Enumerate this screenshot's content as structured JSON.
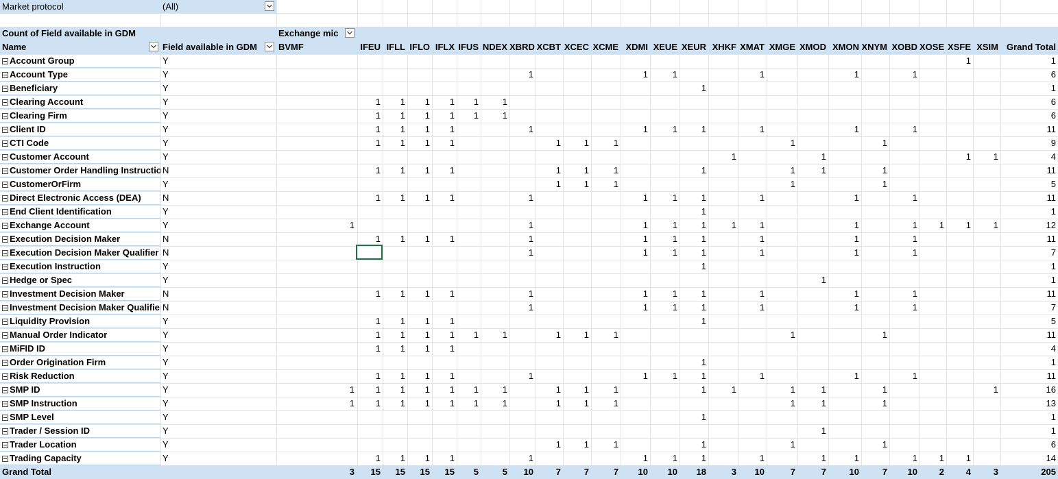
{
  "page_filter": {
    "label": "Market protocol",
    "value": "(All)"
  },
  "header": {
    "values_label": "Count of Field available in GDM",
    "col_field_label": "Exchange mic",
    "name_label": "Name",
    "field_label": "Field available in GDM",
    "grand_total_label": "Grand Total"
  },
  "columns": [
    "BVMF",
    "IFEU",
    "IFLL",
    "IFLO",
    "IFLX",
    "IFUS",
    "NDEX",
    "XBRD",
    "XCBT",
    "XCEC",
    "XCME",
    "XDMI",
    "XEUE",
    "XEUR",
    "XHKF",
    "XMAT",
    "XMGE",
    "XMOD",
    "XMON",
    "XNYM",
    "XOBD",
    "XOSE",
    "XSFE",
    "XSIM"
  ],
  "rows": [
    {
      "name": "Account Group",
      "field": "Y",
      "values": [
        "",
        "",
        "",
        "",
        "",
        "",
        "",
        "",
        "",
        "",
        "",
        "",
        "",
        "",
        "",
        "",
        "",
        "",
        "",
        "",
        "",
        "",
        "1",
        ""
      ],
      "total": "1"
    },
    {
      "name": "Account Type",
      "field": "Y",
      "values": [
        "",
        "",
        "",
        "",
        "",
        "",
        "",
        "1",
        "",
        "",
        "",
        "1",
        "1",
        "",
        "",
        "1",
        "",
        "",
        "1",
        "",
        "1",
        "",
        "",
        ""
      ],
      "total": "6"
    },
    {
      "name": "Beneficiary",
      "field": "Y",
      "values": [
        "",
        "",
        "",
        "",
        "",
        "",
        "",
        "",
        "",
        "",
        "",
        "",
        "",
        "1",
        "",
        "",
        "",
        "",
        "",
        "",
        "",
        "",
        "",
        ""
      ],
      "total": "1"
    },
    {
      "name": "Clearing Account",
      "field": "Y",
      "values": [
        "",
        "1",
        "1",
        "1",
        "1",
        "1",
        "1",
        "",
        "",
        "",
        "",
        "",
        "",
        "",
        "",
        "",
        "",
        "",
        "",
        "",
        "",
        "",
        "",
        ""
      ],
      "total": "6"
    },
    {
      "name": "Clearing Firm",
      "field": "Y",
      "values": [
        "",
        "1",
        "1",
        "1",
        "1",
        "1",
        "1",
        "",
        "",
        "",
        "",
        "",
        "",
        "",
        "",
        "",
        "",
        "",
        "",
        "",
        "",
        "",
        "",
        ""
      ],
      "total": "6"
    },
    {
      "name": "Client ID",
      "field": "Y",
      "values": [
        "",
        "1",
        "1",
        "1",
        "1",
        "",
        "",
        "1",
        "",
        "",
        "",
        "1",
        "1",
        "1",
        "",
        "1",
        "",
        "",
        "1",
        "",
        "1",
        "",
        "",
        ""
      ],
      "total": "11"
    },
    {
      "name": "CTI Code",
      "field": "Y",
      "values": [
        "",
        "1",
        "1",
        "1",
        "1",
        "",
        "",
        "",
        "1",
        "1",
        "1",
        "",
        "",
        "",
        "",
        "",
        "1",
        "",
        "",
        "1",
        "",
        "",
        "",
        ""
      ],
      "total": "9"
    },
    {
      "name": "Customer Account",
      "field": "Y",
      "values": [
        "",
        "",
        "",
        "",
        "",
        "",
        "",
        "",
        "",
        "",
        "",
        "",
        "",
        "",
        "1",
        "",
        "",
        "1",
        "",
        "",
        "",
        "",
        "1",
        "1"
      ],
      "total": "4"
    },
    {
      "name": "Customer Order Handling Instruction",
      "field": "N",
      "values": [
        "",
        "1",
        "1",
        "1",
        "1",
        "",
        "",
        "",
        "1",
        "1",
        "1",
        "",
        "",
        "1",
        "",
        "",
        "1",
        "1",
        "",
        "1",
        "",
        "",
        "",
        ""
      ],
      "total": "11"
    },
    {
      "name": "CustomerOrFirm",
      "field": "Y",
      "values": [
        "",
        "",
        "",
        "",
        "",
        "",
        "",
        "",
        "1",
        "1",
        "1",
        "",
        "",
        "",
        "",
        "",
        "1",
        "",
        "",
        "1",
        "",
        "",
        "",
        ""
      ],
      "total": "5"
    },
    {
      "name": "Direct Electronic Access (DEA)",
      "field": "N",
      "values": [
        "",
        "1",
        "1",
        "1",
        "1",
        "",
        "",
        "1",
        "",
        "",
        "",
        "1",
        "1",
        "1",
        "",
        "1",
        "",
        "",
        "1",
        "",
        "1",
        "",
        "",
        ""
      ],
      "total": "11"
    },
    {
      "name": "End Client Identification",
      "field": "Y",
      "values": [
        "",
        "",
        "",
        "",
        "",
        "",
        "",
        "",
        "",
        "",
        "",
        "",
        "",
        "1",
        "",
        "",
        "",
        "",
        "",
        "",
        "",
        "",
        "",
        ""
      ],
      "total": "1"
    },
    {
      "name": "Exchange Account",
      "field": "Y",
      "values": [
        "1",
        "",
        "",
        "",
        "",
        "",
        "",
        "1",
        "",
        "",
        "",
        "1",
        "1",
        "1",
        "1",
        "1",
        "",
        "",
        "1",
        "",
        "1",
        "1",
        "1",
        "1"
      ],
      "total": "12"
    },
    {
      "name": "Execution Decision Maker",
      "field": "N",
      "values": [
        "",
        "1",
        "1",
        "1",
        "1",
        "",
        "",
        "1",
        "",
        "",
        "",
        "1",
        "1",
        "1",
        "",
        "1",
        "",
        "",
        "1",
        "",
        "1",
        "",
        "",
        ""
      ],
      "total": "11"
    },
    {
      "name": "Execution Decision Maker Qualifier",
      "field": "N",
      "values": [
        "",
        "",
        "",
        "",
        "",
        "",
        "",
        "1",
        "",
        "",
        "",
        "1",
        "1",
        "1",
        "",
        "1",
        "",
        "",
        "1",
        "",
        "1",
        "",
        "",
        ""
      ],
      "total": "7"
    },
    {
      "name": "Execution Instruction",
      "field": "Y",
      "values": [
        "",
        "",
        "",
        "",
        "",
        "",
        "",
        "",
        "",
        "",
        "",
        "",
        "",
        "1",
        "",
        "",
        "",
        "",
        "",
        "",
        "",
        "",
        "",
        ""
      ],
      "total": "1"
    },
    {
      "name": "Hedge or Spec",
      "field": "Y",
      "values": [
        "",
        "",
        "",
        "",
        "",
        "",
        "",
        "",
        "",
        "",
        "",
        "",
        "",
        "",
        "",
        "",
        "",
        "1",
        "",
        "",
        "",
        "",
        "",
        ""
      ],
      "total": "1"
    },
    {
      "name": "Investment Decision Maker",
      "field": "N",
      "values": [
        "",
        "1",
        "1",
        "1",
        "1",
        "",
        "",
        "1",
        "",
        "",
        "",
        "1",
        "1",
        "1",
        "",
        "1",
        "",
        "",
        "1",
        "",
        "1",
        "",
        "",
        ""
      ],
      "total": "11"
    },
    {
      "name": "Investment Decision Maker Qualifier",
      "field": "N",
      "values": [
        "",
        "",
        "",
        "",
        "",
        "",
        "",
        "1",
        "",
        "",
        "",
        "1",
        "1",
        "1",
        "",
        "1",
        "",
        "",
        "1",
        "",
        "1",
        "",
        "",
        ""
      ],
      "total": "7"
    },
    {
      "name": "Liquidity Provision",
      "field": "Y",
      "values": [
        "",
        "1",
        "1",
        "1",
        "1",
        "",
        "",
        "",
        "",
        "",
        "",
        "",
        "",
        "1",
        "",
        "",
        "",
        "",
        "",
        "",
        "",
        "",
        "",
        ""
      ],
      "total": "5"
    },
    {
      "name": "Manual Order Indicator",
      "field": "Y",
      "values": [
        "",
        "1",
        "1",
        "1",
        "1",
        "1",
        "1",
        "",
        "1",
        "1",
        "1",
        "",
        "",
        "",
        "",
        "",
        "1",
        "",
        "",
        "1",
        "",
        "",
        "",
        ""
      ],
      "total": "11"
    },
    {
      "name": "MiFID ID",
      "field": "Y",
      "values": [
        "",
        "1",
        "1",
        "1",
        "1",
        "",
        "",
        "",
        "",
        "",
        "",
        "",
        "",
        "",
        "",
        "",
        "",
        "",
        "",
        "",
        "",
        "",
        "",
        ""
      ],
      "total": "4"
    },
    {
      "name": "Order Origination Firm",
      "field": "Y",
      "values": [
        "",
        "",
        "",
        "",
        "",
        "",
        "",
        "",
        "",
        "",
        "",
        "",
        "",
        "1",
        "",
        "",
        "",
        "",
        "",
        "",
        "",
        "",
        "",
        ""
      ],
      "total": "1"
    },
    {
      "name": "Risk Reduction",
      "field": "Y",
      "values": [
        "",
        "1",
        "1",
        "1",
        "1",
        "",
        "",
        "1",
        "",
        "",
        "",
        "1",
        "1",
        "1",
        "",
        "1",
        "",
        "",
        "1",
        "",
        "1",
        "",
        "",
        ""
      ],
      "total": "11"
    },
    {
      "name": "SMP ID",
      "field": "Y",
      "values": [
        "1",
        "1",
        "1",
        "1",
        "1",
        "1",
        "1",
        "",
        "1",
        "1",
        "1",
        "",
        "",
        "1",
        "1",
        "",
        "1",
        "1",
        "",
        "1",
        "",
        "",
        "",
        "1"
      ],
      "total": "16"
    },
    {
      "name": "SMP Instruction",
      "field": "Y",
      "values": [
        "1",
        "1",
        "1",
        "1",
        "1",
        "1",
        "1",
        "",
        "1",
        "1",
        "1",
        "",
        "",
        "",
        "",
        "",
        "1",
        "1",
        "",
        "1",
        "",
        "",
        "",
        ""
      ],
      "total": "13"
    },
    {
      "name": "SMP Level",
      "field": "Y",
      "values": [
        "",
        "",
        "",
        "",
        "",
        "",
        "",
        "",
        "",
        "",
        "",
        "",
        "",
        "1",
        "",
        "",
        "",
        "",
        "",
        "",
        "",
        "",
        "",
        ""
      ],
      "total": "1"
    },
    {
      "name": "Trader / Session ID",
      "field": "Y",
      "values": [
        "",
        "",
        "",
        "",
        "",
        "",
        "",
        "",
        "",
        "",
        "",
        "",
        "",
        "",
        "",
        "",
        "",
        "1",
        "",
        "",
        "",
        "",
        "",
        ""
      ],
      "total": "1"
    },
    {
      "name": "Trader Location",
      "field": "Y",
      "values": [
        "",
        "",
        "",
        "",
        "",
        "",
        "",
        "",
        "1",
        "1",
        "1",
        "",
        "",
        "1",
        "",
        "",
        "1",
        "",
        "",
        "1",
        "",
        "",
        "",
        ""
      ],
      "total": "6"
    },
    {
      "name": "Trading Capacity",
      "field": "Y",
      "values": [
        "",
        "1",
        "1",
        "1",
        "1",
        "",
        "",
        "1",
        "",
        "",
        "",
        "1",
        "1",
        "1",
        "",
        "1",
        "",
        "1",
        "1",
        "",
        "1",
        "1",
        "1",
        ""
      ],
      "total": "14"
    }
  ],
  "grand_total": {
    "label": "Grand Total",
    "values": [
      "3",
      "15",
      "15",
      "15",
      "15",
      "5",
      "5",
      "10",
      "7",
      "7",
      "7",
      "10",
      "10",
      "18",
      "3",
      "10",
      "7",
      "7",
      "10",
      "7",
      "10",
      "2",
      "4",
      "3"
    ],
    "total": "205"
  },
  "icons": {
    "filter": "dropdown-arrow-icon",
    "collapse": "collapse-minus-icon"
  },
  "colors": {
    "header_fill": "#cfe2f3",
    "selection_border": "#1e7145"
  }
}
